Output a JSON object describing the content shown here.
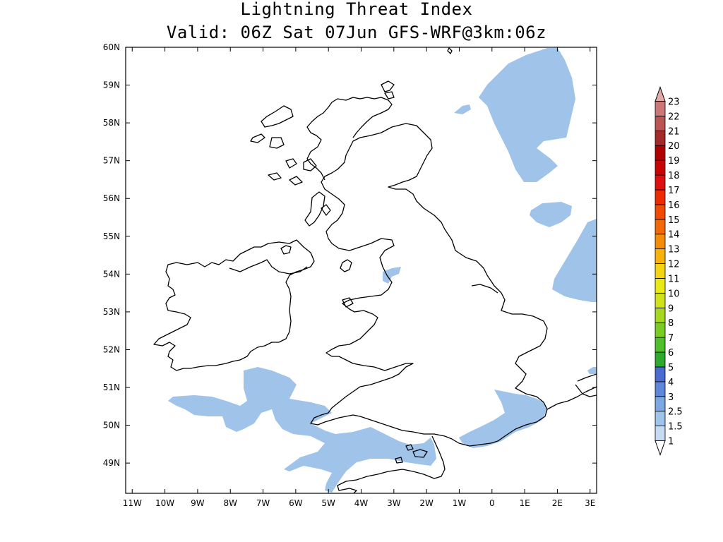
{
  "title": "Lightning Threat Index",
  "subtitle": "Valid: 06Z Sat 07Jun GFS-WRF@3km:06z",
  "map": {
    "lat_labels": [
      "60N",
      "59N",
      "58N",
      "57N",
      "56N",
      "55N",
      "54N",
      "53N",
      "52N",
      "51N",
      "50N",
      "49N"
    ],
    "lon_labels": [
      "11W",
      "10W",
      "9W",
      "8W",
      "7W",
      "6W",
      "5W",
      "4W",
      "3W",
      "2W",
      "1W",
      "0",
      "1E",
      "2E",
      "3E"
    ],
    "lat_range": [
      48.2,
      60.0
    ],
    "lon_range": [
      -11.2,
      3.2
    ]
  },
  "colorbar": {
    "levels": [
      "1",
      "1.5",
      "2.5",
      "3",
      "4",
      "5",
      "6",
      "7",
      "8",
      "9",
      "10",
      "11",
      "12",
      "13",
      "14",
      "15",
      "16",
      "17",
      "18",
      "19",
      "20",
      "21",
      "22",
      "23"
    ],
    "colors": [
      "#ffffff",
      "#c6dbf2",
      "#9fc3e9",
      "#7da7e3",
      "#5f86d8",
      "#4a6bcf",
      "#2eaa2e",
      "#4cbf2a",
      "#7acb24",
      "#a7d81f",
      "#cfe21a",
      "#e9e917",
      "#f5d511",
      "#f7b20c",
      "#f58c08",
      "#f26a05",
      "#f04a03",
      "#ee2a02",
      "#e01010",
      "#c80505",
      "#b00000",
      "#a52a2a",
      "#bb5555",
      "#cc7777",
      "#e0aaaa"
    ]
  },
  "colors": {
    "threat_fill": "#9fc3e9",
    "coastline": "#000000"
  }
}
